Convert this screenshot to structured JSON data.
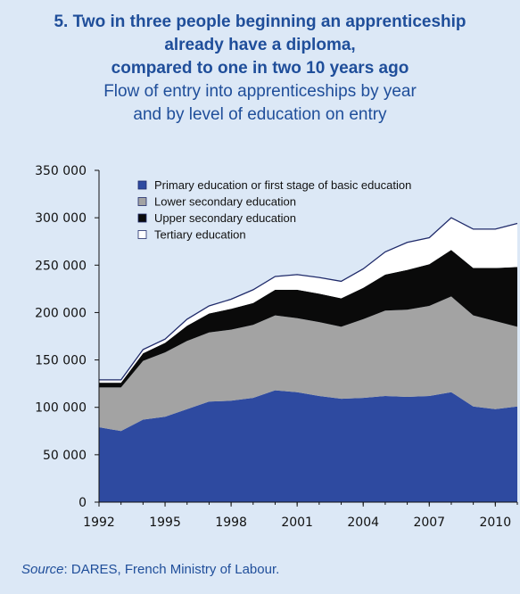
{
  "title_lines": [
    "5. Two in three people beginning an apprenticeship",
    "already have a diploma,",
    "compared to one in two 10 years ago"
  ],
  "subtitle_lines": [
    "Flow of entry into apprenticeships by year",
    "and by level of education on entry"
  ],
  "source": {
    "label": "Source",
    "text": ": DARES, French Ministry of Labour."
  },
  "chart_data": {
    "type": "area",
    "stacked": true,
    "x": [
      1992,
      1993,
      1994,
      1995,
      1996,
      1997,
      1998,
      1999,
      2000,
      2001,
      2002,
      2003,
      2004,
      2005,
      2006,
      2007,
      2008,
      2009,
      2010,
      2011
    ],
    "x_ticks": [
      "1992",
      "1995",
      "1998",
      "2001",
      "2004",
      "2007",
      "2010"
    ],
    "y_ticks": [
      "0",
      "50 000",
      "100 000",
      "150 000",
      "200 000",
      "250 000",
      "300 000",
      "350 000"
    ],
    "ylim": [
      0,
      350000
    ],
    "legend_position": "top",
    "series": [
      {
        "name": "Primary education or first stage of basic education",
        "color": "#2e4aa0",
        "values": [
          79000,
          75000,
          87000,
          90000,
          98000,
          106000,
          107000,
          110000,
          118000,
          116000,
          112000,
          109000,
          110000,
          112000,
          111000,
          112000,
          116000,
          101000,
          98000,
          101000
        ]
      },
      {
        "name": "Lower secondary education",
        "color": "#a3a3a3",
        "values": [
          42000,
          46000,
          62000,
          68000,
          72000,
          73000,
          75000,
          77000,
          79000,
          78000,
          78000,
          76000,
          83000,
          90000,
          92000,
          95000,
          101000,
          96000,
          93000,
          84000
        ]
      },
      {
        "name": "Upper secondary education",
        "color": "#0a0a0a",
        "values": [
          5000,
          5000,
          8000,
          10000,
          16000,
          20000,
          22000,
          23000,
          27000,
          30000,
          30000,
          30000,
          33000,
          38000,
          42000,
          44000,
          49000,
          50000,
          56000,
          63000
        ]
      },
      {
        "name": "Tertiary education",
        "color": "#ffffff",
        "values": [
          3000,
          3000,
          4000,
          4000,
          7000,
          8000,
          10000,
          14000,
          14000,
          16000,
          17000,
          18000,
          20000,
          24000,
          29000,
          28000,
          34000,
          41000,
          41000,
          46000
        ]
      }
    ]
  }
}
